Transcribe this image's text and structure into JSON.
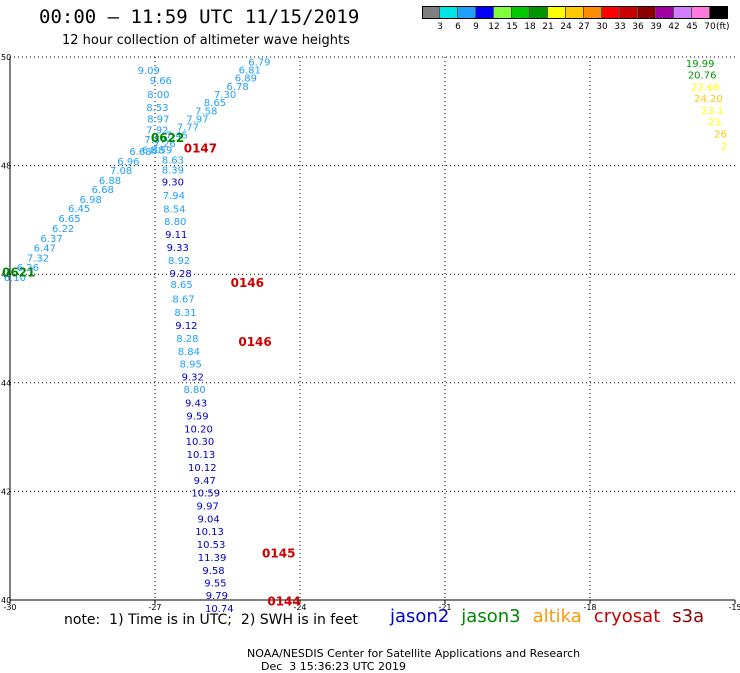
{
  "title": "00:00 – 11:59 UTC 11/15/2019",
  "subtitle": "12 hour collection of altimeter wave heights",
  "legend_scale": {
    "unit": "(ft)",
    "items": [
      {
        "label": "3",
        "color": "#7f7f7f"
      },
      {
        "label": "6",
        "color": "#00e5e5"
      },
      {
        "label": "9",
        "color": "#1fa0ff"
      },
      {
        "label": "12",
        "color": "#0000ff"
      },
      {
        "label": "15",
        "color": "#7fff3a"
      },
      {
        "label": "18",
        "color": "#00c800"
      },
      {
        "label": "21",
        "color": "#009600"
      },
      {
        "label": "24",
        "color": "#ffff00"
      },
      {
        "label": "27",
        "color": "#ffc800"
      },
      {
        "label": "30",
        "color": "#ff8c00"
      },
      {
        "label": "33",
        "color": "#ff0000"
      },
      {
        "label": "36",
        "color": "#c80000"
      },
      {
        "label": "39",
        "color": "#8c0000"
      },
      {
        "label": "42",
        "color": "#a000a0"
      },
      {
        "label": "45",
        "color": "#d27dff"
      },
      {
        "label": "70",
        "color": "#ff78dc"
      },
      {
        "label": "",
        "color": "#000000"
      }
    ]
  },
  "footer": {
    "note": "note:  1) Time is in UTC;  2) SWH is in feet",
    "credit": "NOAA/NESDIS Center for Satellite Applications and Research",
    "timestamp": "Dec  3 15:36:23 UTC 2019"
  },
  "satellites": [
    {
      "name": "jason2",
      "color": "#0000cc"
    },
    {
      "name": "jason3",
      "color": "#008800"
    },
    {
      "name": "altika",
      "color": "#ff9900"
    },
    {
      "name": "cryosat",
      "color": "#cc0000"
    },
    {
      "name": "s3a",
      "color": "#880000"
    }
  ],
  "chart_data": {
    "type": "scatter",
    "xlim": [
      -30,
      -15
    ],
    "ylim": [
      40,
      50
    ],
    "x_ticks": [
      "-30",
      "-27",
      "-24",
      "-21",
      "-18",
      "-15"
    ],
    "y_ticks": [
      "40",
      "42",
      "44",
      "46",
      "48",
      "50"
    ],
    "grid": true,
    "points": [
      {
        "x": -27.13,
        "y": 49.74,
        "label": "9.09",
        "color": "#1fa0ff"
      },
      {
        "x": -26.88,
        "y": 49.56,
        "label": "9.66",
        "color": "#1fa0ff"
      },
      {
        "x": -26.93,
        "y": 49.3,
        "label": "8.00",
        "color": "#1fa0ff"
      },
      {
        "x": -26.95,
        "y": 49.06,
        "label": "8.53",
        "color": "#1fa0ff"
      },
      {
        "x": -26.93,
        "y": 48.85,
        "label": "8.97",
        "color": "#1fa0ff"
      },
      {
        "x": -26.95,
        "y": 48.65,
        "label": "7.92",
        "color": "#1fa0ff"
      },
      {
        "x": -26.99,
        "y": 48.47,
        "label": "7.57",
        "color": "#1fa0ff"
      },
      {
        "x": -27.04,
        "y": 48.28,
        "label": "6.88",
        "color": "#1fa0ff"
      },
      {
        "x": -26.87,
        "y": 48.28,
        "label": "8.59",
        "color": "#1fa0ff"
      },
      {
        "x": -26.63,
        "y": 48.09,
        "label": "8.63",
        "color": "#1fa0ff"
      },
      {
        "x": -26.63,
        "y": 47.91,
        "label": "8.39",
        "color": "#1fa0ff"
      },
      {
        "x": -26.63,
        "y": 47.69,
        "label": "9.30",
        "color": "#0000cc"
      },
      {
        "x": -26.61,
        "y": 47.44,
        "label": "7.94",
        "color": "#1fa0ff"
      },
      {
        "x": -26.6,
        "y": 47.19,
        "label": "8.54",
        "color": "#1fa0ff"
      },
      {
        "x": -26.58,
        "y": 46.96,
        "label": "8.80",
        "color": "#1fa0ff"
      },
      {
        "x": -26.56,
        "y": 46.72,
        "label": "9.11",
        "color": "#0000cc"
      },
      {
        "x": -26.53,
        "y": 46.48,
        "label": "9.33",
        "color": "#0000cc"
      },
      {
        "x": -26.5,
        "y": 46.24,
        "label": "8.92",
        "color": "#1fa0ff"
      },
      {
        "x": -26.47,
        "y": 46.0,
        "label": "9.28",
        "color": "#0000cc"
      },
      {
        "x": -26.45,
        "y": 45.8,
        "label": "8.65",
        "color": "#1fa0ff"
      },
      {
        "x": -26.41,
        "y": 45.53,
        "label": "8.67",
        "color": "#1fa0ff"
      },
      {
        "x": -26.37,
        "y": 45.29,
        "label": "8.31",
        "color": "#1fa0ff"
      },
      {
        "x": -26.35,
        "y": 45.05,
        "label": "9.12",
        "color": "#0000cc"
      },
      {
        "x": -26.33,
        "y": 44.81,
        "label": "8.28",
        "color": "#1fa0ff"
      },
      {
        "x": -26.3,
        "y": 44.57,
        "label": "8.84",
        "color": "#1fa0ff"
      },
      {
        "x": -26.26,
        "y": 44.34,
        "label": "8.95",
        "color": "#1fa0ff"
      },
      {
        "x": -26.22,
        "y": 44.1,
        "label": "9.32",
        "color": "#0000cc"
      },
      {
        "x": -26.18,
        "y": 43.87,
        "label": "8.80",
        "color": "#1fa0ff"
      },
      {
        "x": -26.15,
        "y": 43.62,
        "label": "9.43",
        "color": "#0000cc"
      },
      {
        "x": -26.12,
        "y": 43.38,
        "label": "9.59",
        "color": "#0000cc"
      },
      {
        "x": -26.1,
        "y": 43.14,
        "label": "10.20",
        "color": "#0000cc"
      },
      {
        "x": -26.07,
        "y": 42.91,
        "label": "10.30",
        "color": "#0000cc"
      },
      {
        "x": -26.05,
        "y": 42.67,
        "label": "10.13",
        "color": "#0000cc"
      },
      {
        "x": -26.02,
        "y": 42.43,
        "label": "10.12",
        "color": "#0000cc"
      },
      {
        "x": -25.97,
        "y": 42.19,
        "label": "9.47",
        "color": "#0000cc"
      },
      {
        "x": -25.95,
        "y": 41.96,
        "label": "10.59",
        "color": "#0000cc"
      },
      {
        "x": -25.91,
        "y": 41.72,
        "label": "9.97",
        "color": "#0000cc"
      },
      {
        "x": -25.89,
        "y": 41.48,
        "label": "9.04",
        "color": "#0000cc"
      },
      {
        "x": -25.87,
        "y": 41.25,
        "label": "10.13",
        "color": "#0000cc"
      },
      {
        "x": -25.84,
        "y": 41.01,
        "label": "10.53",
        "color": "#0000cc"
      },
      {
        "x": -25.82,
        "y": 40.77,
        "label": "11.39",
        "color": "#0000cc"
      },
      {
        "x": -25.79,
        "y": 40.53,
        "label": "9.58",
        "color": "#0000cc"
      },
      {
        "x": -25.75,
        "y": 40.3,
        "label": "9.55",
        "color": "#0000cc"
      },
      {
        "x": -25.72,
        "y": 40.07,
        "label": "9.79",
        "color": "#0000cc"
      },
      {
        "x": -25.67,
        "y": 39.83,
        "label": "10.74",
        "color": "#0000cc"
      },
      {
        "x": -24.84,
        "y": 49.9,
        "label": "6.79",
        "color": "#1fa0ff"
      },
      {
        "x": -25.04,
        "y": 49.75,
        "label": "6.81",
        "color": "#1fa0ff"
      },
      {
        "x": -25.12,
        "y": 49.6,
        "label": "6.89",
        "color": "#1fa0ff"
      },
      {
        "x": -25.29,
        "y": 49.45,
        "label": "6.78",
        "color": "#1fa0ff"
      },
      {
        "x": -25.55,
        "y": 49.3,
        "label": "7.30",
        "color": "#1fa0ff"
      },
      {
        "x": -25.76,
        "y": 49.15,
        "label": "8.65",
        "color": "#1fa0ff"
      },
      {
        "x": -25.94,
        "y": 49.0,
        "label": "7.58",
        "color": "#1fa0ff"
      },
      {
        "x": -26.12,
        "y": 48.85,
        "label": "7.97",
        "color": "#1fa0ff"
      },
      {
        "x": -26.32,
        "y": 48.7,
        "label": "7.77",
        "color": "#1fa0ff"
      },
      {
        "x": -26.55,
        "y": 48.55,
        "label": "7.45",
        "color": "#1fa0ff"
      },
      {
        "x": -26.8,
        "y": 48.4,
        "label": "7.26",
        "color": "#1fa0ff"
      },
      {
        "x": -27.3,
        "y": 48.25,
        "label": "6.68",
        "color": "#1fa0ff"
      },
      {
        "x": -27.55,
        "y": 48.07,
        "label": "6.96",
        "color": "#1fa0ff"
      },
      {
        "x": -27.7,
        "y": 47.9,
        "label": "7.08",
        "color": "#1fa0ff"
      },
      {
        "x": -27.93,
        "y": 47.72,
        "label": "6.88",
        "color": "#1fa0ff"
      },
      {
        "x": -28.08,
        "y": 47.55,
        "label": "6.68",
        "color": "#1fa0ff"
      },
      {
        "x": -28.33,
        "y": 47.37,
        "label": "6.98",
        "color": "#1fa0ff"
      },
      {
        "x": -28.57,
        "y": 47.2,
        "label": "6.45",
        "color": "#1fa0ff"
      },
      {
        "x": -28.77,
        "y": 47.02,
        "label": "6.65",
        "color": "#1fa0ff"
      },
      {
        "x": -28.9,
        "y": 46.83,
        "label": "6.22",
        "color": "#1fa0ff"
      },
      {
        "x": -29.14,
        "y": 46.65,
        "label": "6.37",
        "color": "#1fa0ff"
      },
      {
        "x": -29.28,
        "y": 46.47,
        "label": "6.47",
        "color": "#1fa0ff"
      },
      {
        "x": -29.42,
        "y": 46.29,
        "label": "7.32",
        "color": "#1fa0ff"
      },
      {
        "x": -29.63,
        "y": 46.11,
        "label": "6.26",
        "color": "#1fa0ff"
      },
      {
        "x": -29.9,
        "y": 45.93,
        "label": "6.10",
        "color": "#1fa0ff"
      },
      {
        "x": -15.72,
        "y": 49.87,
        "label": "19.99",
        "color": "#009600"
      },
      {
        "x": -15.68,
        "y": 49.66,
        "label": "20.76",
        "color": "#009600"
      },
      {
        "x": -15.61,
        "y": 49.44,
        "label": "22.66",
        "color": "#ffff00"
      },
      {
        "x": -15.55,
        "y": 49.23,
        "label": "24.20",
        "color": "#ffc800"
      },
      {
        "x": -15.47,
        "y": 49.01,
        "label": "23.1",
        "color": "#ffff00"
      },
      {
        "x": -15.4,
        "y": 48.79,
        "label": "23.",
        "color": "#ffff00"
      },
      {
        "x": -15.3,
        "y": 48.57,
        "label": "26",
        "color": "#ffc800"
      },
      {
        "x": -15.22,
        "y": 48.35,
        "label": "2",
        "color": "#ffff00"
      }
    ],
    "time_labels": [
      {
        "x": -26.74,
        "y": 48.5,
        "label": "0622",
        "color": "#008800"
      },
      {
        "x": -26.06,
        "y": 48.31,
        "label": "0147",
        "color": "#cc0000"
      },
      {
        "x": -29.82,
        "y": 46.02,
        "label": "0621",
        "color": "#008800"
      },
      {
        "x": -25.09,
        "y": 45.83,
        "label": "0146",
        "color": "#cc0000"
      },
      {
        "x": -24.93,
        "y": 44.74,
        "label": "0146",
        "color": "#cc0000"
      },
      {
        "x": -24.44,
        "y": 40.85,
        "label": "0145",
        "color": "#cc0000"
      },
      {
        "x": -24.33,
        "y": 39.96,
        "label": "0144",
        "color": "#cc0000"
      }
    ]
  }
}
